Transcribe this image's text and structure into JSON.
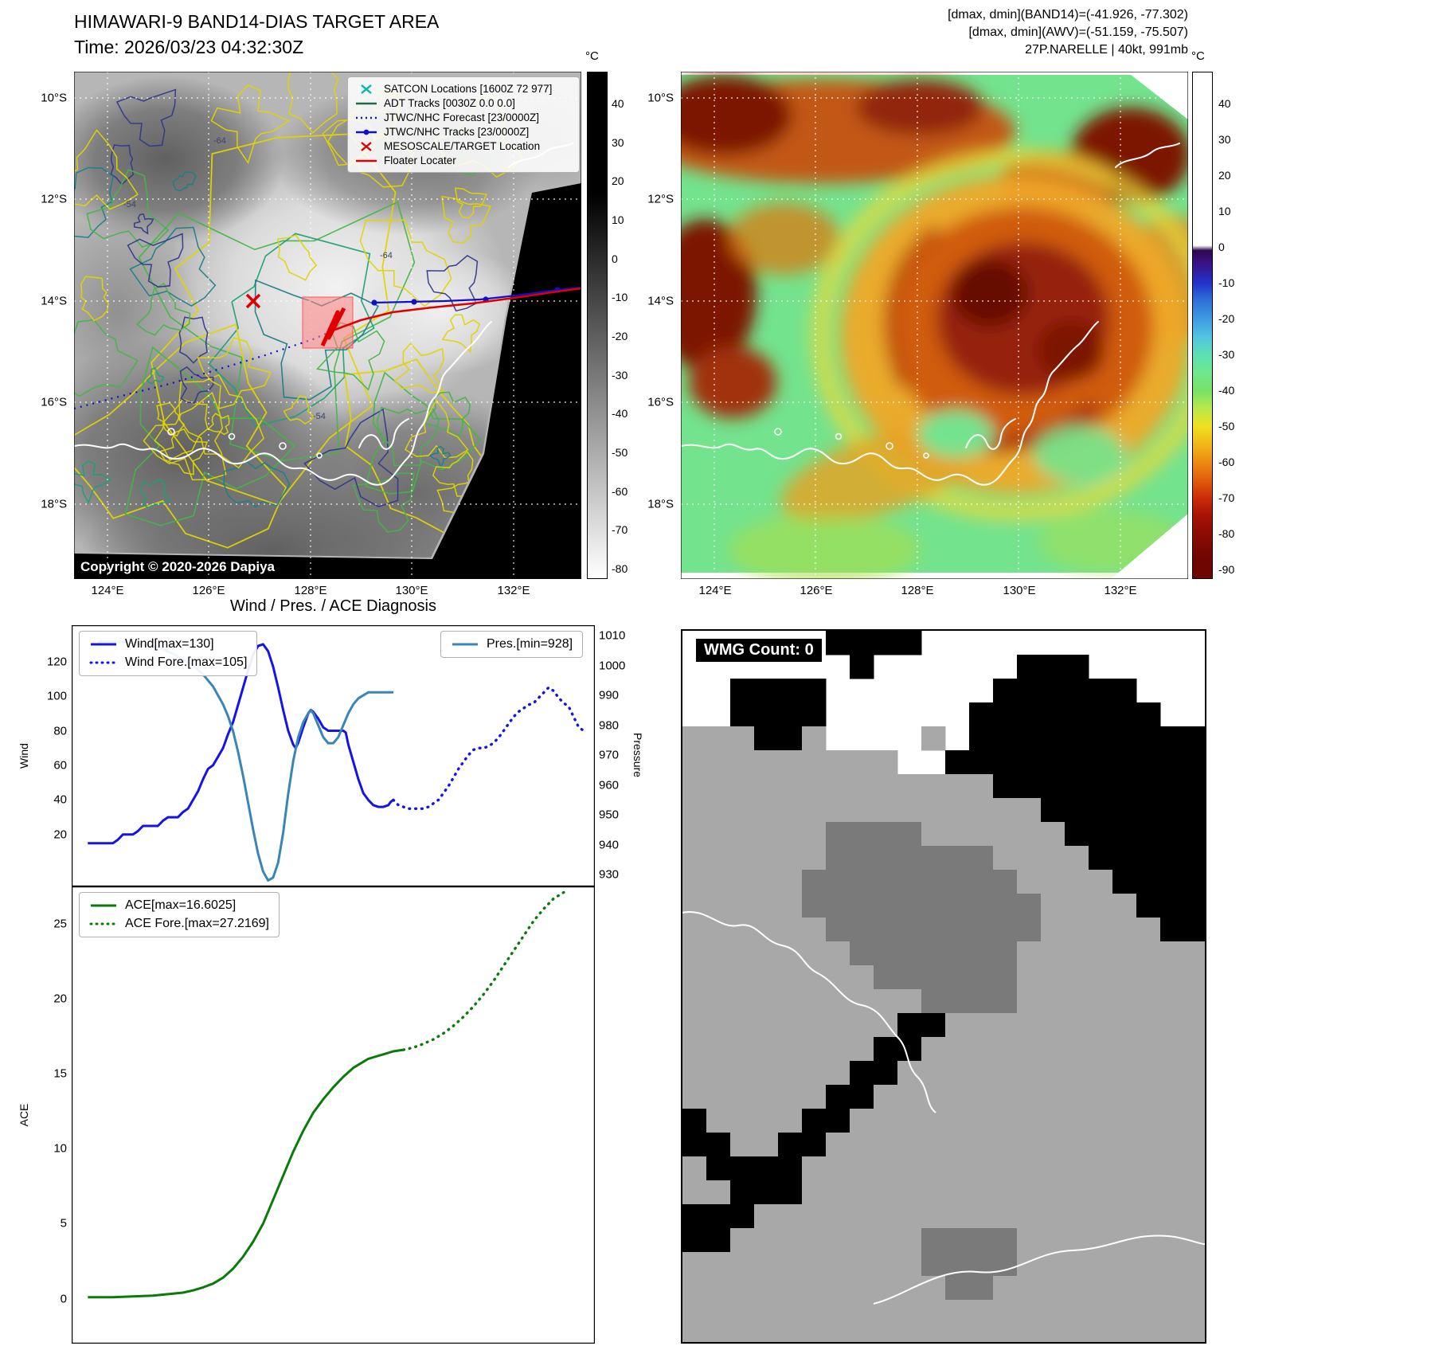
{
  "header_left": {
    "title": "HIMAWARI-9 BAND14-DIAS TARGET AREA",
    "time": "Time: 2026/03/23 04:32:30Z"
  },
  "header_right": {
    "line1": "[dmax, dmin](BAND14)=(-41.926, -77.302)",
    "line2": "[dmax, dmin](AWV)=(-51.159, -75.507)",
    "line3": "27P.NARELLE | 40kt, 991mb"
  },
  "maps": {
    "lat_labels": [
      "10°S",
      "12°S",
      "14°S",
      "16°S",
      "18°S"
    ],
    "lon_labels": [
      "124°E",
      "126°E",
      "128°E",
      "130°E",
      "132°E"
    ],
    "copyright": "Copyright © 2020-2026 Dapiya",
    "contour_labels": [
      "-64",
      "-54",
      "-64",
      "-54"
    ],
    "legend": [
      {
        "label": "SATCON Locations [1600Z 72 977]",
        "type": "x",
        "color": "#00b5b5"
      },
      {
        "label": "ADT Tracks [0030Z 0.0 0.0]",
        "type": "line",
        "color": "#1a6b4a"
      },
      {
        "label": "JTWC/NHC Forecast [23/0000Z]",
        "type": "dotted",
        "color": "#1010cc"
      },
      {
        "label": "JTWC/NHC Tracks [23/0000Z]",
        "type": "line-dot",
        "color": "#1010cc"
      },
      {
        "label": "MESOSCALE/TARGET Location",
        "type": "x",
        "color": "#dd0000"
      },
      {
        "label": "Floater Locater",
        "type": "line",
        "color": "#e00000"
      }
    ],
    "colorbar_left": {
      "unit": "°C",
      "ticks": [
        40,
        30,
        20,
        10,
        0,
        -10,
        -20,
        -30,
        -40,
        -50,
        -60,
        -70,
        -80
      ]
    },
    "colorbar_right": {
      "unit": "°C",
      "ticks": [
        40,
        30,
        20,
        10,
        0,
        -10,
        -20,
        -30,
        -40,
        -50,
        -60,
        -70,
        -80,
        -90
      ]
    }
  },
  "chart_data": [
    {
      "type": "line",
      "title": "Wind / Pres. / ACE Diagnosis",
      "ylabel_left": "Wind",
      "ylabel_right": "Pressure",
      "ylim_left": [
        -10,
        141
      ],
      "ylim_right": [
        926,
        1013.5
      ],
      "yticks_left": [
        20,
        40,
        60,
        80,
        100,
        120
      ],
      "yticks_right": [
        930,
        940,
        950,
        960,
        970,
        980,
        990,
        1000,
        1010
      ],
      "series": [
        {
          "name": "Wind[max=130]",
          "axis": "left",
          "style": "solid",
          "color": "#1414e6",
          "points": [
            [
              1,
              15
            ],
            [
              4,
              15
            ],
            [
              6,
              15
            ],
            [
              7,
              17
            ],
            [
              8,
              20
            ],
            [
              10,
              20
            ],
            [
              11,
              22
            ],
            [
              12,
              25
            ],
            [
              14,
              25
            ],
            [
              15,
              25
            ],
            [
              16,
              28
            ],
            [
              17,
              30
            ],
            [
              19,
              30
            ],
            [
              20,
              33
            ],
            [
              21,
              35
            ],
            [
              22,
              40
            ],
            [
              23,
              45
            ],
            [
              24,
              52
            ],
            [
              25,
              58
            ],
            [
              26,
              60
            ],
            [
              27,
              65
            ],
            [
              28,
              70
            ],
            [
              29,
              78
            ],
            [
              30,
              85
            ],
            [
              31,
              95
            ],
            [
              32,
              105
            ],
            [
              33,
              115
            ],
            [
              34,
              124
            ],
            [
              35,
              129
            ],
            [
              36,
              130
            ],
            [
              37,
              126
            ],
            [
              38,
              117
            ],
            [
              39,
              105
            ],
            [
              40,
              92
            ],
            [
              41,
              80
            ],
            [
              42,
              72
            ],
            [
              42.5,
              70
            ],
            [
              43,
              73
            ],
            [
              44,
              82
            ],
            [
              45,
              90
            ],
            [
              45.5,
              92
            ],
            [
              46,
              91
            ],
            [
              47,
              87
            ],
            [
              48,
              82
            ],
            [
              49,
              80
            ],
            [
              50,
              80
            ],
            [
              51,
              80
            ],
            [
              52,
              80
            ],
            [
              52.5,
              79
            ],
            [
              53,
              72
            ],
            [
              54,
              62
            ],
            [
              55,
              52
            ],
            [
              56,
              44
            ],
            [
              57,
              40
            ],
            [
              58,
              37
            ],
            [
              59,
              36
            ],
            [
              60,
              36
            ],
            [
              61,
              37
            ],
            [
              61.5,
              39
            ],
            [
              62,
              40
            ]
          ]
        },
        {
          "name": "Wind Fore.[max=105]",
          "axis": "left",
          "style": "dotted",
          "color": "#1414e6",
          "points": [
            [
              62,
              40
            ],
            [
              63,
              37
            ],
            [
              64,
              36
            ],
            [
              65,
              35
            ],
            [
              66,
              35
            ],
            [
              67,
              35
            ],
            [
              68,
              35
            ],
            [
              69,
              36
            ],
            [
              70,
              38
            ],
            [
              71,
              40
            ],
            [
              72,
              44
            ],
            [
              73,
              48
            ],
            [
              74,
              53
            ],
            [
              75,
              58
            ],
            [
              76,
              62
            ],
            [
              77,
              66
            ],
            [
              78,
              69
            ],
            [
              79,
              70
            ],
            [
              80,
              70
            ],
            [
              81,
              71
            ],
            [
              82,
              73
            ],
            [
              83,
              76
            ],
            [
              84,
              80
            ],
            [
              85,
              84
            ],
            [
              86,
              88
            ],
            [
              87,
              91
            ],
            [
              88,
              93
            ],
            [
              89,
              95
            ],
            [
              90,
              96
            ],
            [
              91,
              99
            ],
            [
              92,
              102
            ],
            [
              93,
              105
            ],
            [
              94,
              103
            ],
            [
              95,
              99
            ],
            [
              96,
              96
            ],
            [
              97,
              94
            ],
            [
              98,
              88
            ],
            [
              99,
              82
            ],
            [
              100,
              80
            ]
          ]
        },
        {
          "name": "Pres.[min=928]",
          "axis": "right",
          "style": "solid",
          "color": "#3a85b8",
          "points": [
            [
              3,
              1008
            ],
            [
              8,
              1008
            ],
            [
              12,
              1007
            ],
            [
              15,
              1006
            ],
            [
              18,
              1004
            ],
            [
              20,
              1002
            ],
            [
              22,
              1000
            ],
            [
              24,
              997
            ],
            [
              26,
              993
            ],
            [
              27,
              990
            ],
            [
              28,
              987
            ],
            [
              29,
              983
            ],
            [
              30,
              978
            ],
            [
              31,
              971
            ],
            [
              32,
              963
            ],
            [
              33,
              954
            ],
            [
              34,
              945
            ],
            [
              35,
              937
            ],
            [
              36,
              931
            ],
            [
              37,
              928
            ],
            [
              38,
              929
            ],
            [
              39,
              934
            ],
            [
              40,
              944
            ],
            [
              41,
              957
            ],
            [
              42,
              968
            ],
            [
              43,
              976
            ],
            [
              44,
              981
            ],
            [
              45,
              984
            ],
            [
              45.5,
              985
            ],
            [
              46,
              984
            ],
            [
              47,
              980
            ],
            [
              48,
              976
            ],
            [
              49,
              974
            ],
            [
              50,
              974
            ],
            [
              51,
              976
            ],
            [
              52,
              980
            ],
            [
              53,
              984
            ],
            [
              54,
              987
            ],
            [
              55,
              989
            ],
            [
              56,
              990
            ],
            [
              57,
              991
            ],
            [
              58,
              991
            ],
            [
              60,
              991
            ],
            [
              62,
              991
            ]
          ]
        }
      ]
    },
    {
      "type": "line",
      "ylabel": "ACE",
      "ylim": [
        -3,
        27.5
      ],
      "yticks": [
        0,
        5,
        10,
        15,
        20,
        25
      ],
      "series": [
        {
          "name": "ACE[max=16.6025]",
          "style": "solid",
          "color": "#0a7a0a",
          "points": [
            [
              1,
              0.1
            ],
            [
              6,
              0.1
            ],
            [
              10,
              0.15
            ],
            [
              14,
              0.2
            ],
            [
              17,
              0.3
            ],
            [
              20,
              0.4
            ],
            [
              22,
              0.55
            ],
            [
              24,
              0.75
            ],
            [
              26,
              1.0
            ],
            [
              28,
              1.4
            ],
            [
              30,
              2.0
            ],
            [
              32,
              2.8
            ],
            [
              34,
              3.8
            ],
            [
              36,
              5.0
            ],
            [
              38,
              6.6
            ],
            [
              40,
              8.2
            ],
            [
              42,
              9.8
            ],
            [
              44,
              11.2
            ],
            [
              46,
              12.4
            ],
            [
              48,
              13.3
            ],
            [
              50,
              14.1
            ],
            [
              52,
              14.8
            ],
            [
              54,
              15.4
            ],
            [
              56,
              15.8
            ],
            [
              57,
              16.0
            ],
            [
              58,
              16.1
            ],
            [
              60,
              16.3
            ],
            [
              62,
              16.5
            ],
            [
              64,
              16.6
            ]
          ]
        },
        {
          "name": "ACE Fore.[max=27.2169]",
          "style": "dotted",
          "color": "#0a7a0a",
          "points": [
            [
              64,
              16.6
            ],
            [
              66,
              16.75
            ],
            [
              68,
              17.0
            ],
            [
              70,
              17.3
            ],
            [
              72,
              17.7
            ],
            [
              74,
              18.2
            ],
            [
              76,
              18.8
            ],
            [
              78,
              19.5
            ],
            [
              80,
              20.3
            ],
            [
              82,
              21.2
            ],
            [
              84,
              22.2
            ],
            [
              86,
              23.2
            ],
            [
              88,
              24.2
            ],
            [
              90,
              25.2
            ],
            [
              92,
              26.0
            ],
            [
              94,
              26.7
            ],
            [
              96,
              27.1
            ],
            [
              97,
              27.2
            ]
          ]
        }
      ]
    }
  ],
  "wmg": {
    "label": "WMG Count: 0",
    "palette": {
      ".": "#ffffff",
      "g": "#a8a8a8",
      "d": "#7a7a7a",
      "b": "#000000"
    },
    "grid": [
      "......bbbb............",
      ".......b......bbb.....",
      "..bbbb.......bbbbbb...",
      "..bbbb......bbbbbbbb..",
      "gggbbg....g.bbbbbbbbbb",
      "ggggggggg..bbbbbbbbbbb",
      "gggggggggggggbbbbbbbbb",
      "gggggggggggggggbbbbbbb",
      "ggggggddddggggggbbbbbb",
      "ggggggdddddddggggbbbbb",
      "gggggdddddddddggggbbbb",
      "gggggddddddddddggggbbb",
      "ggggggdddddddddgggggbb",
      "gggggggdddddddgggggggg",
      "ggggggggddddddgggggggg",
      "ggggggggggddddgggggggg",
      "gggggggggbbggggggggggg",
      "ggggggggbbgggggggggggg",
      "gggggggbbggggggggggggg",
      "ggggggbbgggggggggggggg",
      "bggggbbggggggggggggggg",
      "bbggbbgggggggggggggggg",
      "gbbbbggggggggggggggggg",
      "ggbbbggggggggggggggggg",
      "bbbggggggggggggggggggg",
      "bbggggggggddddgggggggg",
      "ggggggggggddddgggggggg",
      "gggggggggggddggggggggg",
      "gggggggggggggggggggggg",
      "gggggggggggggggggggggg"
    ]
  }
}
